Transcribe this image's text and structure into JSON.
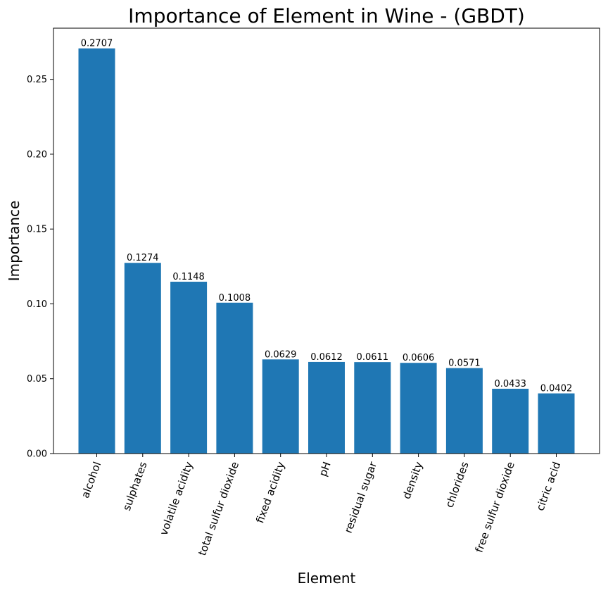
{
  "chart_data": {
    "type": "bar",
    "title": "Importance of Element in Wine - (GBDT)",
    "xlabel": "Element",
    "ylabel": "Importance",
    "categories": [
      "alcohol",
      "sulphates",
      "volatile acidity",
      "total sulfur dioxide",
      "fixed acidity",
      "pH",
      "residual sugar",
      "density",
      "chlorides",
      "free sulfur dioxide",
      "citric acid"
    ],
    "values": [
      0.2707,
      0.1274,
      0.1148,
      0.1008,
      0.0629,
      0.0612,
      0.0611,
      0.0606,
      0.0571,
      0.0433,
      0.0402
    ],
    "value_labels": [
      "0.2707",
      "0.1274",
      "0.1148",
      "0.1008",
      "0.0629",
      "0.0612",
      "0.0611",
      "0.0606",
      "0.0571",
      "0.0433",
      "0.0402"
    ],
    "yticks": [
      0.0,
      0.05,
      0.1,
      0.15,
      0.2,
      0.25
    ],
    "ytick_labels": [
      "0.00",
      "0.05",
      "0.10",
      "0.15",
      "0.20",
      "0.25"
    ],
    "ylim": [
      0,
      0.2842
    ],
    "bar_color": "#1f77b4",
    "grid": false,
    "xtick_rotation_deg": -70
  }
}
